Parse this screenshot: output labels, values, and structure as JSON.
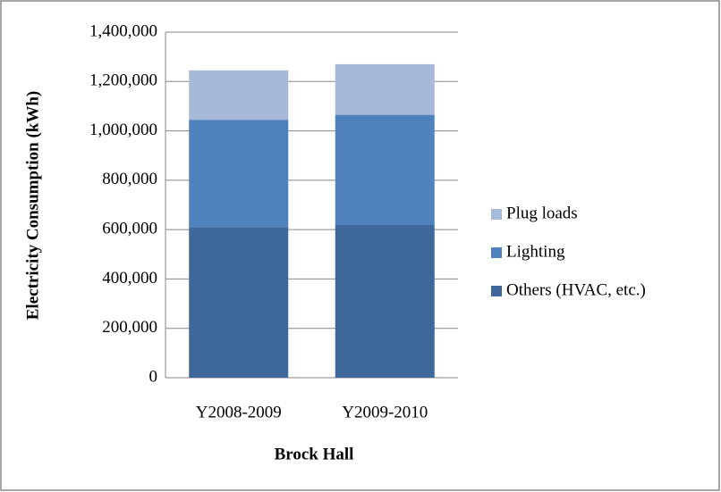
{
  "chart_data": {
    "type": "stacked-bar",
    "x_label": "Brock Hall",
    "y_label": "Electricity Consumption (kWh)",
    "categories": [
      "Y2008-2009",
      "Y2009-2010"
    ],
    "series": [
      {
        "name": "Others (HVAC, etc.)",
        "color": "#3e679a",
        "values": [
          610000,
          620000
        ]
      },
      {
        "name": "Lighting",
        "color": "#4f81bd",
        "values": [
          435000,
          445000
        ]
      },
      {
        "name": "Plug loads",
        "color": "#a7b9d9",
        "values": [
          200000,
          205000
        ]
      }
    ],
    "ylim": [
      0,
      1400000
    ],
    "yticks": [
      0,
      {
        "value": 200000,
        "label": "200,000"
      },
      {
        "value": 400000,
        "label": "400,000"
      },
      {
        "value": 600000,
        "label": "600,000"
      },
      {
        "value": 800000,
        "label": "800,000"
      },
      {
        "value": 1000000,
        "label": "1,000,000"
      },
      {
        "value": 1200000,
        "label": "1,200,000"
      },
      {
        "value": 1400000,
        "label": "1,400,000"
      }
    ],
    "grid": true,
    "legend": "right"
  }
}
